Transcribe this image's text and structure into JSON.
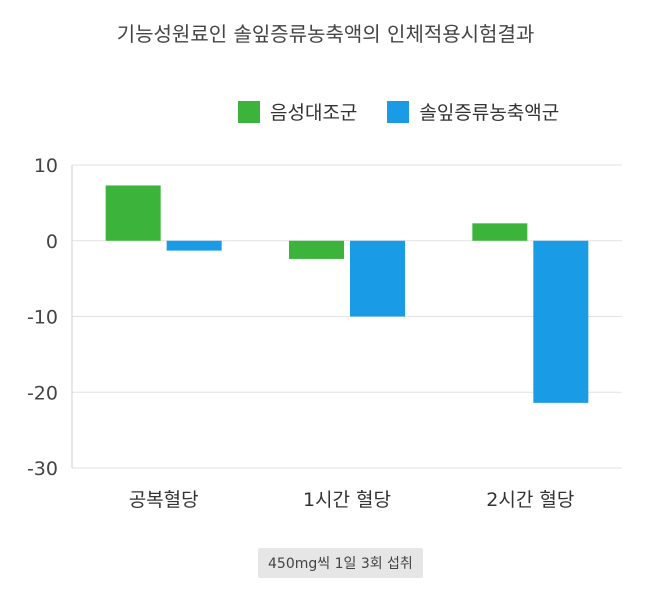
{
  "title": "기능성원료인 솔잎증류농축액의 인체적용시험결과",
  "note": "450mg씩 1일 3회 섭취",
  "chart_data": {
    "type": "bar",
    "categories": [
      "공복혈당",
      "1시간 혈당",
      "2시간 혈당"
    ],
    "series": [
      {
        "name": "음성대조군",
        "color": "#3cb43c",
        "values": [
          7.3,
          -2.4,
          2.3
        ]
      },
      {
        "name": "솔잎증류농축액군",
        "color": "#1a9be6",
        "values": [
          -1.3,
          -10.0,
          -21.4
        ]
      }
    ],
    "y_ticks": [
      "10",
      "0",
      "-10",
      "-20",
      "-30"
    ],
    "ylim": [
      -30,
      10
    ],
    "grid": true,
    "legend_position": "top-right"
  }
}
